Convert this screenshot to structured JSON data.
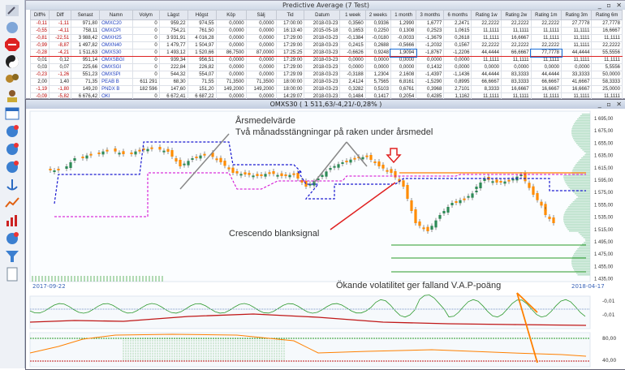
{
  "predictive": {
    "title": "Predictive Average (7  Test)",
    "controls": "_ ▫ ✕",
    "columns": [
      "Diff%",
      "Diff",
      "Senast",
      "Namn",
      "Volym",
      "Lägst",
      "Högst",
      "Köp",
      "Sälj",
      "Tid",
      "Datum",
      "1 week",
      "2 weeks",
      "1 month",
      "3 months",
      "6 months",
      "Rating 1w",
      "Rating 2w",
      "Rating 1m",
      "Rating 3m",
      "Rating 6m"
    ],
    "rows": [
      [
        "-0,11",
        "-1,11",
        "971,80",
        "OMXC20",
        "0",
        "959,22",
        "974,55",
        "0,0000",
        "0,0000",
        "17:00:00",
        "2018-03-23",
        "0,3560",
        "0,9336",
        "1,2990",
        "1,6777",
        "2,2471",
        "22,2222",
        "22,2222",
        "22,2222",
        "27,7778",
        "27,7778"
      ],
      [
        "-0,55",
        "-4,11",
        "758,11",
        "OMXCPI",
        "0",
        "754,21",
        "761,50",
        "0,0000",
        "0,0000",
        "16:13:40",
        "2015-05-18",
        "0,1653",
        "0,2250",
        "0,1308",
        "0,2523",
        "1,0615",
        "11,1111",
        "11,1111",
        "11,1111",
        "11,1111",
        "16,6667"
      ],
      [
        "-0,81",
        "-22,51",
        "3 988,42",
        "OMXH25",
        "0",
        "3 931,91",
        "4 016,28",
        "0,0000",
        "0,0000",
        "17:29:00",
        "2018-03-23",
        "-0,1384",
        "-0,0180",
        "-0,0033",
        "-1,3679",
        "0,2618",
        "11,1111",
        "16,6667",
        "11,1111",
        "11,1111",
        "11,1111"
      ],
      [
        "-0,99",
        "-8,87",
        "1 497,82",
        "OMXN40",
        "0",
        "1 479,77",
        "1 504,97",
        "0,0000",
        "0,0000",
        "17:29:00",
        "2018-03-23",
        "0,2415",
        "0,2688",
        "-0,5666",
        "-1,2032",
        "0,1567",
        "22,2222",
        "22,2222",
        "22,2222",
        "11,1111",
        "22,2222"
      ],
      [
        "-0,28",
        "-4,21",
        "1 511,63",
        "OMXS30",
        "0",
        "1 493,12",
        "1 520,66",
        "86,7500",
        "87,0000",
        "17:25:25",
        "2018-03-23",
        "-0,6626",
        "0,9248",
        "1,9094",
        "-1,8767",
        "-1,2206",
        "44,4444",
        "66,6667",
        "77,7778",
        "44,4444",
        "55,5556"
      ],
      [
        "0,01",
        "0,12",
        "951,14",
        "OMXSBGI",
        "0",
        "939,34",
        "956,51",
        "0,0000",
        "0,0000",
        "17:29:00",
        "2018-03-23",
        "0,0000",
        "0,0000",
        "0,0000",
        "0,0000",
        "0,0000",
        "11,1111",
        "11,1111",
        "11,1111",
        "11,1111",
        "11,1111"
      ],
      [
        "0,03",
        "0,07",
        "225,66",
        "OMXSGI",
        "0",
        "222,84",
        "226,82",
        "0,0000",
        "0,0000",
        "17:29:00",
        "2018-03-23",
        "0,0000",
        "0,0000",
        "0,0000",
        "0,1432",
        "0,0000",
        "0,0000",
        "0,0000",
        "0,0000",
        "0,0000",
        "5,5556"
      ],
      [
        "-0,23",
        "-1,26",
        "551,23",
        "OMXSPI",
        "0",
        "544,32",
        "554,07",
        "0,0000",
        "0,0000",
        "17:29:09",
        "2018-03-23",
        "-0,3188",
        "1,2304",
        "2,1608",
        "-1,4397",
        "-1,1436",
        "44,4444",
        "83,3333",
        "44,4444",
        "33,3333",
        "50,0000"
      ],
      [
        "2,00",
        "1,40",
        "71,35",
        "PEAB B",
        "611 291",
        "68,30",
        "71,55",
        "71,3500",
        "71,3500",
        "18:00:00",
        "2018-03-23",
        "2,4124",
        "5,7565",
        "6,8161",
        "-1,5290",
        "0,8995",
        "66,6667",
        "83,3333",
        "66,6667",
        "41,6667",
        "58,3333"
      ],
      [
        "-1,19",
        "-1,80",
        "149,20",
        "PNDX B",
        "182 596",
        "147,60",
        "151,20",
        "149,2000",
        "149,2000",
        "18:00:00",
        "2018-03-23",
        "0,3282",
        "0,5103",
        "0,6761",
        "0,3968",
        "2,7101",
        "8,3333",
        "16,6667",
        "16,6667",
        "16,6667",
        "25,0000"
      ],
      [
        "-0,09",
        "-5,82",
        "6 676,42",
        "OKI",
        "0",
        "6 672,41",
        "6 687,22",
        "0,0000",
        "0,0000",
        "14:29:07",
        "2018-03-23",
        "0,1484",
        "0,1417",
        "0,2054",
        "0,4285",
        "1,1162",
        "11,1111",
        "11,1111",
        "11,1111",
        "11,1111",
        "11,1111"
      ]
    ]
  },
  "chart": {
    "title": "OMXS30 ( 1 511,63/-4,21/-0,28% )",
    "controls": "_ ▫ ✕",
    "ann_arsmedel": "Årsmedelvärde",
    "ann_two_month": "Två månadsstängningar på raken under årsmedel",
    "ann_crescendo": "Crescendo blanksignal",
    "ann_volatility": "Ökande volatilitet ger falland V.A.P-poäng",
    "date_start": "2017-09-22",
    "date_end": "2018-04-17",
    "price_labels": [
      "1 695,00",
      "1 675,00",
      "1 655,00",
      "1 635,00",
      "1 615,00",
      "1 595,00",
      "1 575,00",
      "1 555,00",
      "1 535,00",
      "1 515,00",
      "1 495,00",
      "1 475,00",
      "1 455,00",
      "1 435,00"
    ],
    "osc_labels": [
      "-0,01",
      "-0,01"
    ],
    "pct_labels": [
      "80,00",
      "40,00"
    ]
  },
  "colors": {
    "bull": "#2e8b57",
    "bear": "#ff8c00",
    "ma_blue": "#1a1ad0",
    "ma_magenta": "#d000d0",
    "ma_orange": "#ff8000",
    "arrow_red": "#e02020"
  }
}
